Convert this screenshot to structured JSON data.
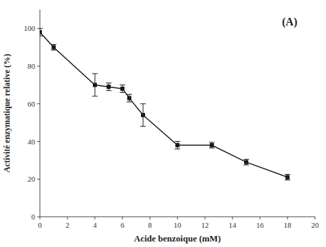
{
  "chart_data": {
    "type": "line",
    "x": [
      0,
      1,
      4,
      5,
      6,
      6.5,
      7.5,
      10,
      12.5,
      15,
      18
    ],
    "values": [
      98,
      90,
      70,
      69,
      68,
      63,
      54,
      38,
      38,
      29,
      21
    ],
    "yerr": [
      2,
      1.5,
      6,
      2,
      2,
      2,
      6,
      2,
      1.5,
      1.5,
      1.5
    ],
    "xlabel": "Acide benzoique (mM)",
    "ylabel": "Activité enzymatique relative (%)",
    "annotation": "(A)",
    "xlim": [
      0,
      20
    ],
    "ylim": [
      0,
      110
    ],
    "xticks": [
      0,
      2,
      4,
      6,
      8,
      10,
      12,
      14,
      16,
      18,
      20
    ],
    "yticks": [
      0,
      20,
      40,
      60,
      80,
      100
    ],
    "color": "#1a1a1a",
    "marker": "square",
    "grid": false
  }
}
